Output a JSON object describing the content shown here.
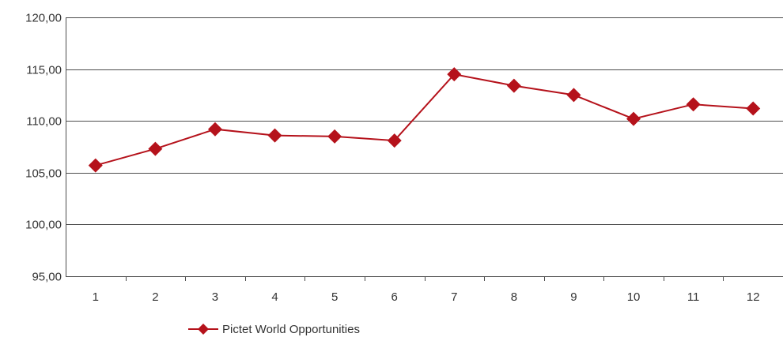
{
  "chart_data": {
    "type": "line",
    "title": "",
    "xlabel": "",
    "ylabel": "",
    "categories": [
      "1",
      "2",
      "3",
      "4",
      "5",
      "6",
      "7",
      "8",
      "9",
      "10",
      "11",
      "12"
    ],
    "ylim": [
      95,
      120
    ],
    "yticks": [
      95,
      100,
      105,
      110,
      115,
      120
    ],
    "ytick_labels": [
      "95,00",
      "100,00",
      "105,00",
      "110,00",
      "115,00",
      "120,00"
    ],
    "grid": true,
    "legend_position": "bottom-left",
    "series": [
      {
        "name": "Pictet World Opportunities",
        "color": "#b5121b",
        "marker": "diamond",
        "values": [
          105.7,
          107.3,
          109.2,
          108.6,
          108.5,
          108.1,
          114.5,
          113.4,
          112.5,
          110.2,
          111.6,
          111.2
        ]
      }
    ]
  }
}
